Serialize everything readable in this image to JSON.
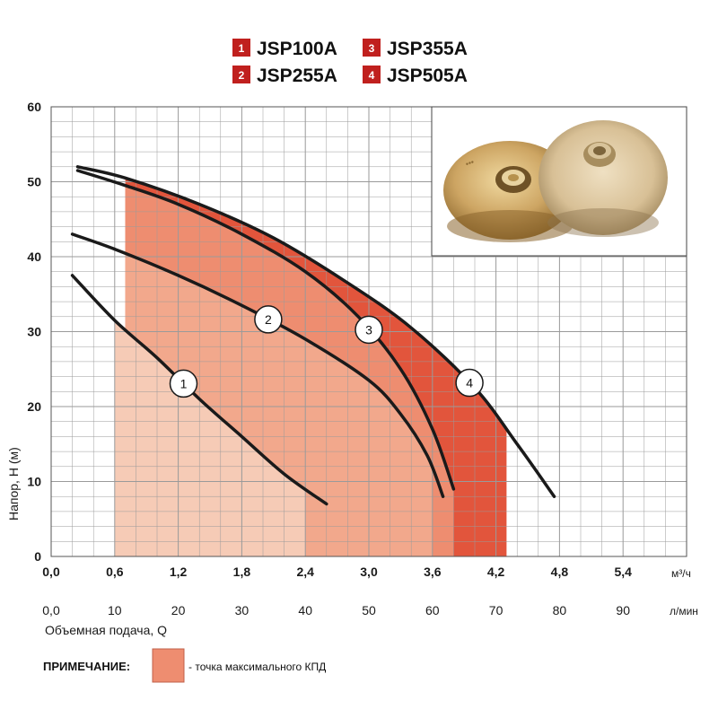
{
  "chart_data": {
    "type": "line",
    "series": [
      {
        "name": "JSP100A",
        "legend_no": "1",
        "x": [
          0.2,
          0.6,
          1.0,
          1.4,
          1.8,
          2.2,
          2.6
        ],
        "y": [
          37.5,
          31.5,
          26.5,
          21.0,
          16.0,
          11.0,
          7.0
        ],
        "marker_q": 1.25
      },
      {
        "name": "JSP255A",
        "legend_no": "2",
        "x": [
          0.2,
          0.6,
          1.2,
          1.8,
          2.4,
          3.0,
          3.3,
          3.55,
          3.7
        ],
        "y": [
          43.0,
          41.0,
          37.5,
          33.5,
          29.0,
          23.5,
          19.0,
          13.5,
          8.0
        ],
        "marker_q": 2.05
      },
      {
        "name": "JSP355A",
        "legend_no": "3",
        "x": [
          0.25,
          0.7,
          1.2,
          1.8,
          2.4,
          2.9,
          3.3,
          3.6,
          3.8
        ],
        "y": [
          51.5,
          49.5,
          47.0,
          43.0,
          38.0,
          32.0,
          25.0,
          17.0,
          9.0
        ],
        "marker_q": 3.0
      },
      {
        "name": "JSP505A",
        "legend_no": "4",
        "x": [
          0.25,
          0.7,
          1.4,
          2.1,
          2.8,
          3.4,
          4.0,
          4.4,
          4.75
        ],
        "y": [
          52.0,
          50.5,
          47.0,
          42.5,
          36.5,
          30.5,
          22.5,
          15.0,
          8.0
        ],
        "marker_q": 3.95
      }
    ],
    "efficiency_zones": [
      {
        "series": "JSP100A",
        "q_from": 0.6,
        "q_to": 2.4,
        "color": "#f6cbb6"
      },
      {
        "series": "JSP255A",
        "q_from": 0.7,
        "q_to": 3.6,
        "color": "#f2a88c"
      },
      {
        "series": "JSP355A",
        "q_from": 0.7,
        "q_to": 3.8,
        "color": "#ee8d70"
      },
      {
        "series": "JSP505A",
        "q_from": 0.7,
        "q_to": 4.3,
        "color": "#e2553c"
      }
    ],
    "x_axis": {
      "unit": "м³/ч",
      "min": 0,
      "max": 6.0,
      "ticks": [
        "0,0",
        "0,6",
        "1,2",
        "1,8",
        "2,4",
        "3,0",
        "3,6",
        "4,2",
        "4,8",
        "5,4"
      ]
    },
    "x2_axis": {
      "unit": "л/мин",
      "ticks": [
        "0,0",
        "10",
        "20",
        "30",
        "40",
        "50",
        "60",
        "70",
        "80",
        "90"
      ]
    },
    "y_axis": {
      "label": "Напор, Н (м)",
      "min": 0,
      "max": 60,
      "ticks": [
        "0",
        "10",
        "20",
        "30",
        "40",
        "50",
        "60"
      ]
    },
    "xlabel": "Объемная подача, Q",
    "grid": true,
    "legend_placement": "top-center"
  },
  "note": {
    "label": "ПРИМЕЧАНИЕ:",
    "text": "- точка максимального КПД",
    "swatch_color": "#ee8d70"
  },
  "colors": {
    "legend_badge": "#c0201e",
    "curve": "#1a1a1a",
    "grid": "#9a9a9a"
  }
}
